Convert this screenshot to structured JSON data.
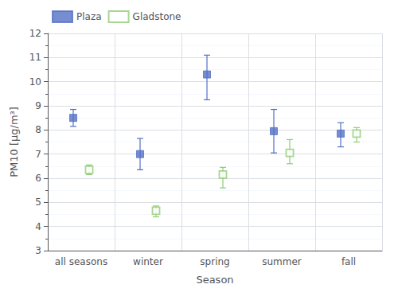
{
  "chart_data": {
    "type": "scatter",
    "xlabel": "Season",
    "ylabel": "PM10 [μg/m³]",
    "categories": [
      "all seasons",
      "winter",
      "spring",
      "summer",
      "fall"
    ],
    "series": [
      {
        "name": "Plaza",
        "marker": "square",
        "values": [
          8.5,
          7.0,
          10.3,
          7.95,
          7.85
        ],
        "errors_upper": [
          0.35,
          0.65,
          0.8,
          0.9,
          0.45
        ],
        "errors_lower": [
          0.35,
          0.65,
          1.05,
          0.9,
          0.55
        ]
      },
      {
        "name": "Gladstone",
        "marker": "square-open",
        "values": [
          6.35,
          4.65,
          6.15,
          7.05,
          7.85
        ],
        "errors_upper": [
          0.2,
          0.2,
          0.3,
          0.55,
          0.25
        ],
        "errors_lower": [
          0.2,
          0.25,
          0.55,
          0.45,
          0.35
        ]
      }
    ],
    "ylim": [
      3,
      12
    ],
    "yticks": [
      3,
      4,
      5,
      6,
      7,
      8,
      9,
      10,
      11,
      12
    ],
    "grid": true,
    "legend": "upper left"
  }
}
